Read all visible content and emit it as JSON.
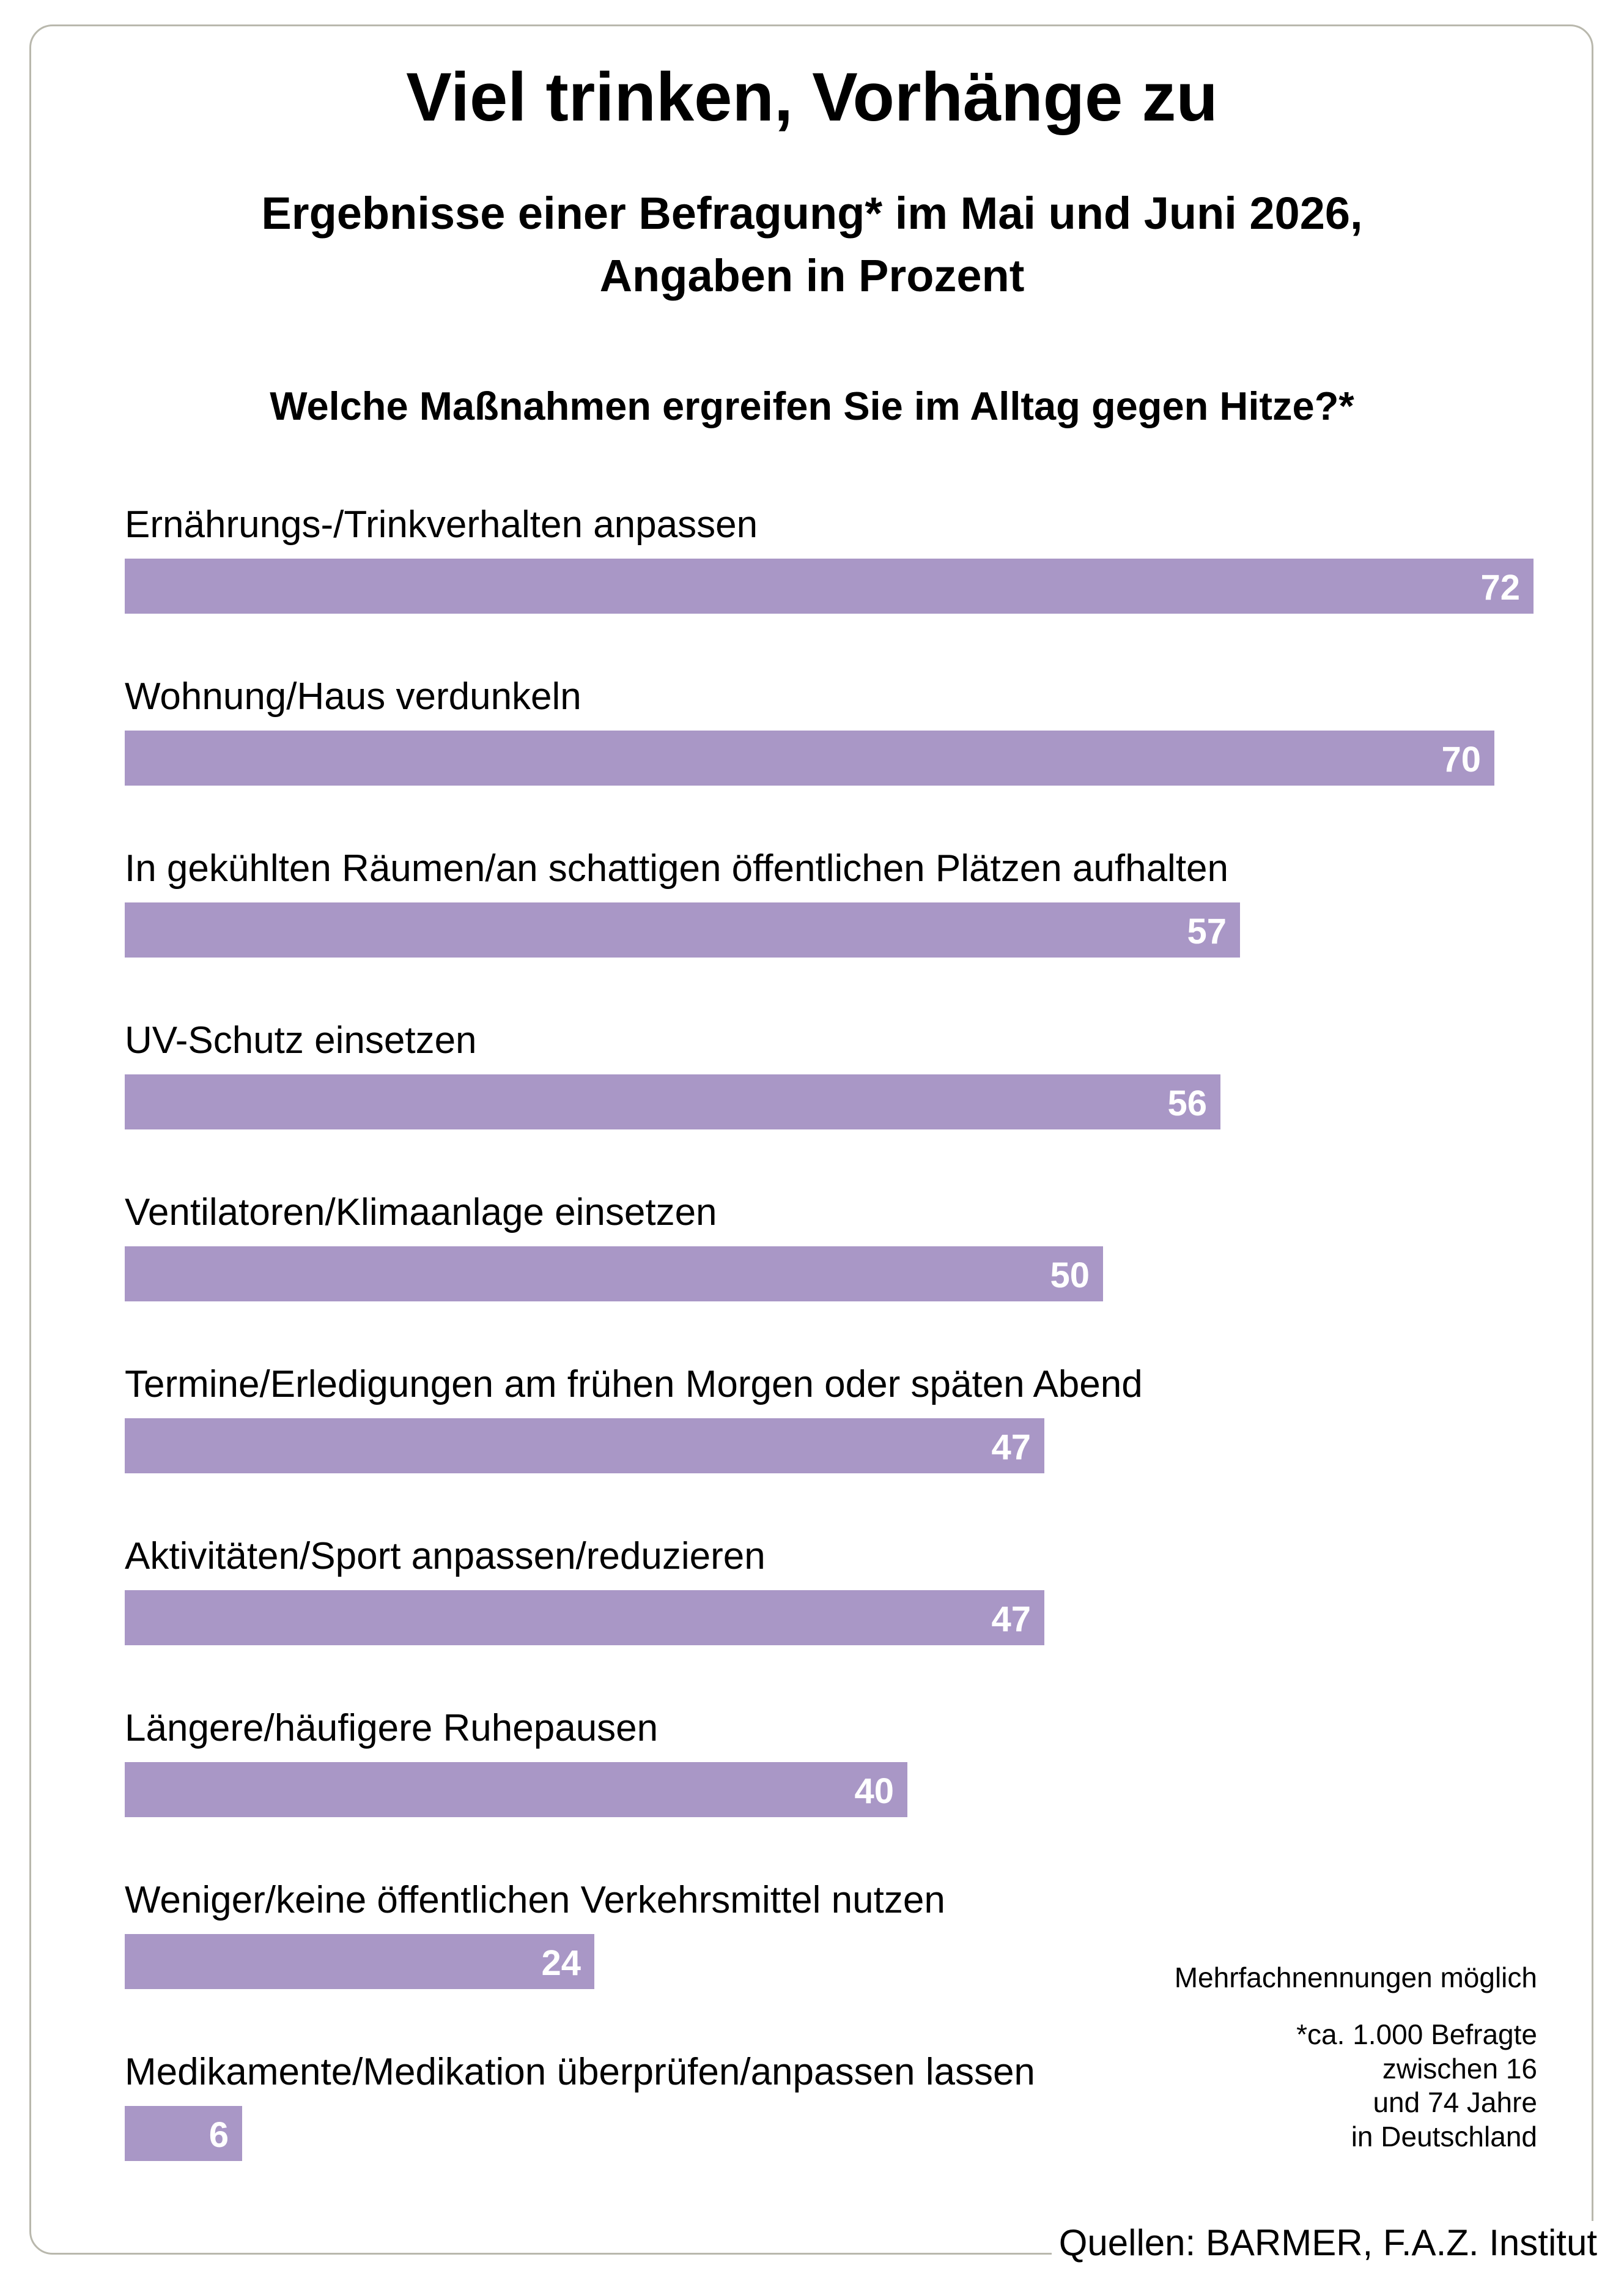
{
  "title": "Viel trinken, Vorhänge zu",
  "subtitle_line1": "Ergebnisse einer Befragung* im Mai und Juni 2026,",
  "subtitle_line2": "Angaben in Prozent",
  "question": "Welche Maßnahmen ergreifen Sie im Alltag gegen Hitze?*",
  "note_multiple": "Mehrfachnennungen möglich",
  "note_sample": [
    "*ca. 1.000 Befragte",
    "zwischen 16",
    "und 74 Jahre",
    "in Deutschland"
  ],
  "source": "Quellen: BARMER, F.A.Z. Institut",
  "colors": {
    "bar": "#a997c6",
    "value_label": "#ffffff",
    "frame": "#b9b8ad"
  },
  "chart_data": {
    "type": "bar",
    "orientation": "horizontal",
    "title": "Welche Maßnahmen ergreifen Sie im Alltag gegen Hitze?*",
    "categories": [
      "Ernährungs-/Trinkverhalten anpassen",
      "Wohnung/Haus verdunkeln",
      "In gekühlten Räumen/an schattigen öffentlichen Plätzen aufhalten",
      "UV-Schutz einsetzen",
      "Ventilatoren/Klimaanlage einsetzen",
      "Termine/Erledigungen am frühen Morgen oder späten Abend",
      "Aktivitäten/Sport anpassen/reduzieren",
      "Längere/häufigere Ruhepausen",
      "Weniger/keine öffentlichen Verkehrsmittel nutzen",
      "Medikamente/Medikation überprüfen/anpassen lassen"
    ],
    "values": [
      72,
      70,
      57,
      56,
      50,
      47,
      47,
      40,
      24,
      6
    ],
    "unit": "Prozent",
    "grid": false,
    "legend": "none"
  }
}
